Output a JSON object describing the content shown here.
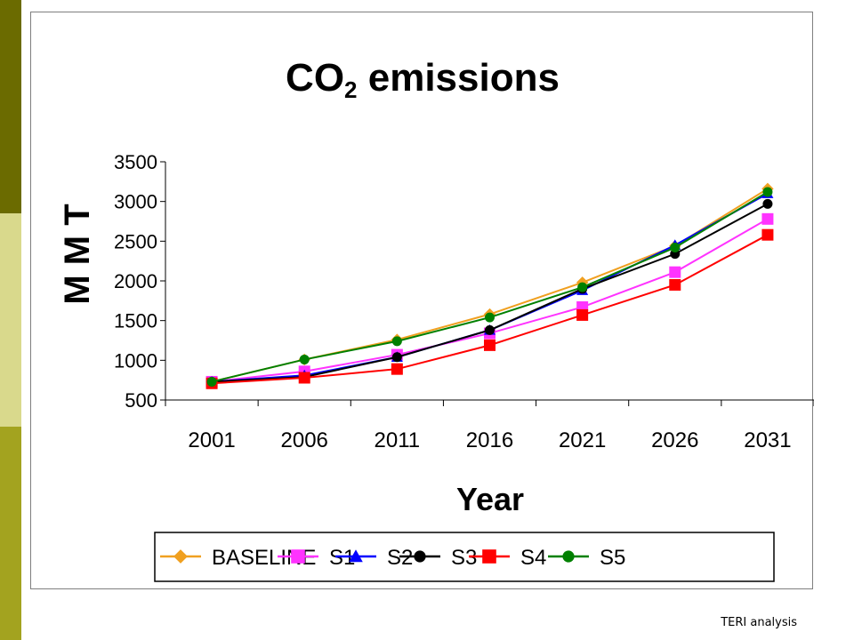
{
  "source_note": "TERI analysis",
  "colors": {
    "sidebar_dark": "#6b6b00",
    "sidebar_light": "#d9d98c",
    "sidebar_mid": "#a3a31f"
  },
  "chart_data": {
    "type": "line",
    "title_main": "CO",
    "title_sub": "2",
    "title_rest": " emissions",
    "xlabel": "Year",
    "ylabel": "M M T",
    "categories": [
      "2001",
      "2006",
      "2011",
      "2016",
      "2021",
      "2026",
      "2031"
    ],
    "yticks": [
      "500",
      "1000",
      "1500",
      "2000",
      "2500",
      "3000",
      "3500"
    ],
    "ylim": [
      500,
      3500
    ],
    "grid": false,
    "legend_position": "bottom",
    "series": [
      {
        "name": "BASELINE",
        "color": "#f0a020",
        "marker": "diamond",
        "values": [
          730,
          1010,
          1260,
          1580,
          1980,
          2440,
          3160
        ]
      },
      {
        "name": "S1",
        "color": "#ff33ff",
        "marker": "square",
        "values": [
          730,
          860,
          1070,
          1340,
          1670,
          2110,
          2780
        ]
      },
      {
        "name": "S2",
        "color": "#0000ff",
        "marker": "triangle",
        "values": [
          730,
          810,
          1040,
          1380,
          1880,
          2450,
          3100
        ]
      },
      {
        "name": "S3",
        "color": "#000000",
        "marker": "circle",
        "values": [
          730,
          790,
          1040,
          1380,
          1900,
          2340,
          2970
        ]
      },
      {
        "name": "S4",
        "color": "#ff0000",
        "marker": "square",
        "values": [
          710,
          780,
          890,
          1190,
          1570,
          1950,
          2580
        ]
      },
      {
        "name": "S5",
        "color": "#008000",
        "marker": "circle",
        "values": [
          730,
          1010,
          1240,
          1540,
          1920,
          2420,
          3120
        ]
      }
    ]
  }
}
